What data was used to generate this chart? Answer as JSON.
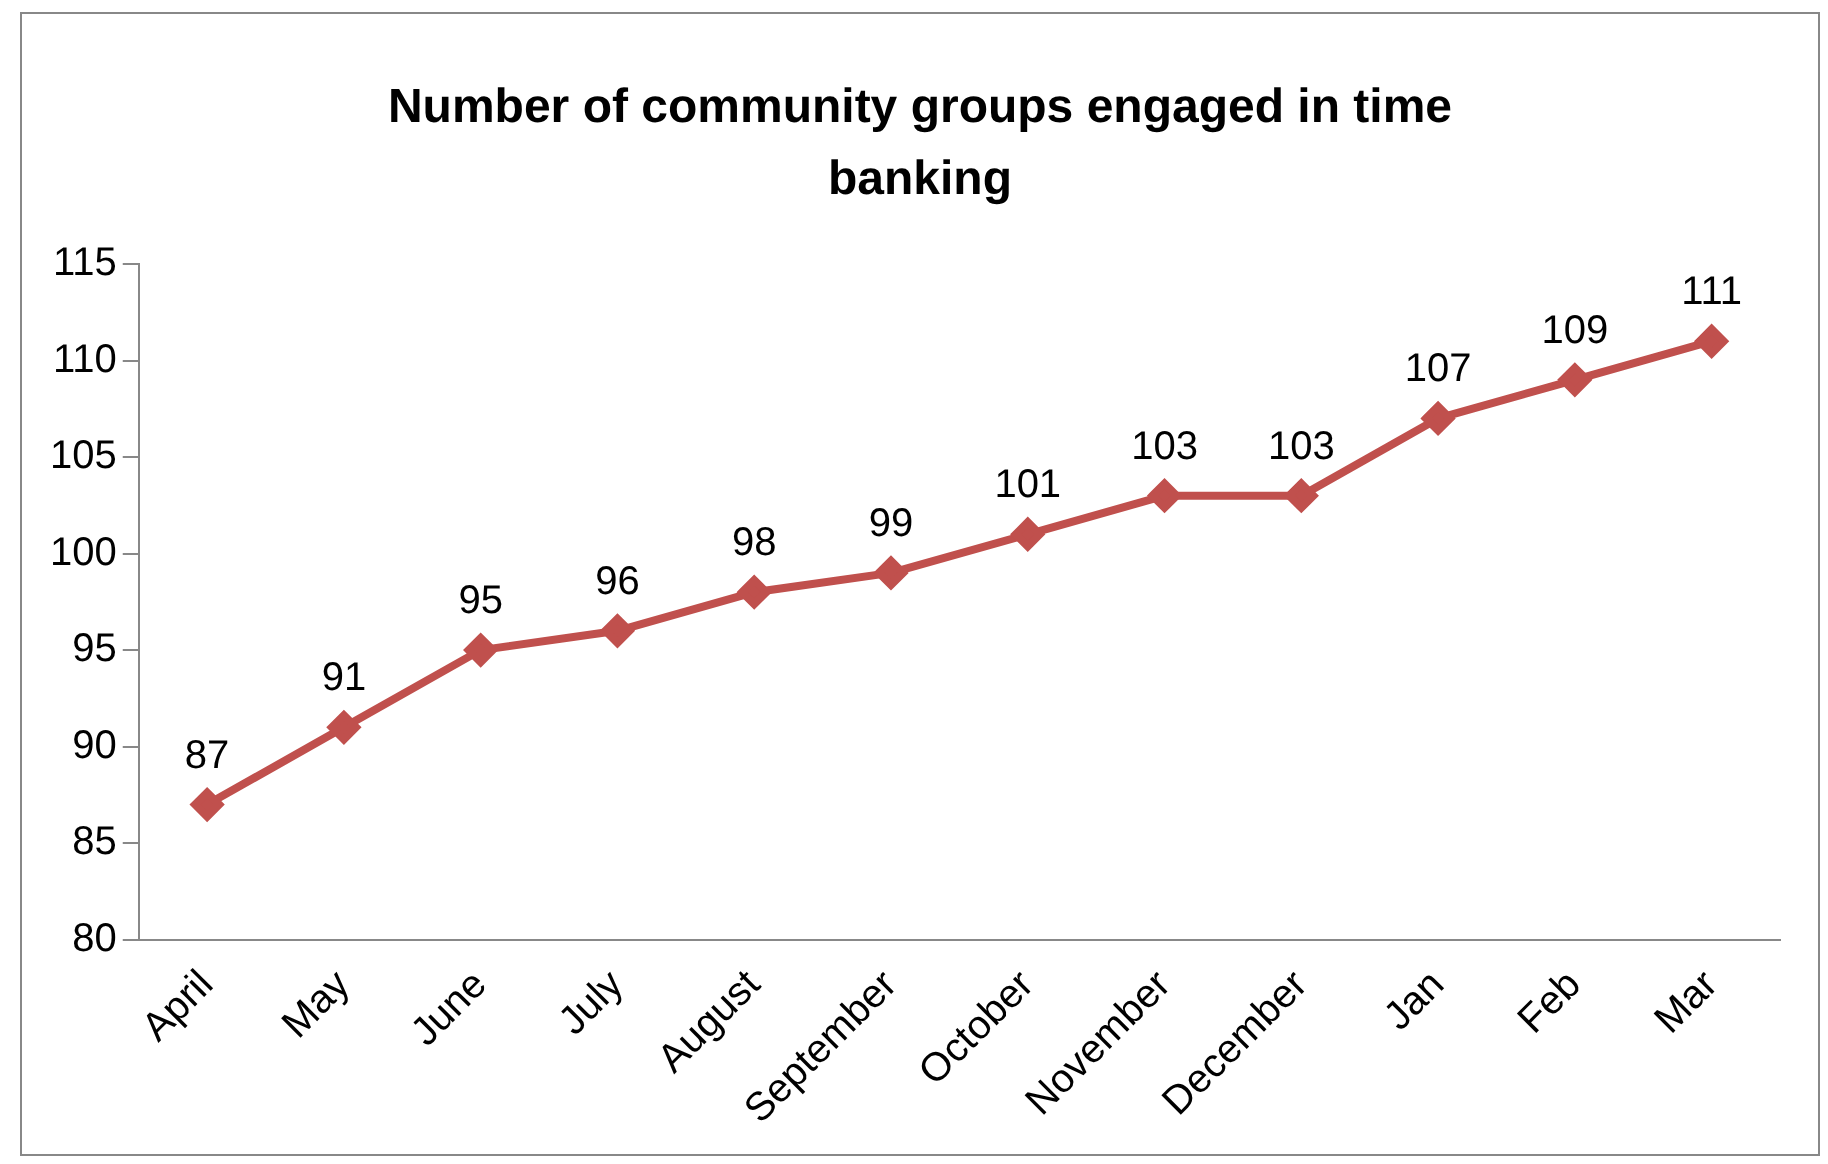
{
  "chart_data": {
    "type": "line",
    "title": "Number of community groups engaged in time banking",
    "categories": [
      "April",
      "May",
      "June",
      "July",
      "August",
      "September",
      "October",
      "November",
      "December",
      "Jan",
      "Feb",
      "Mar"
    ],
    "series": [
      {
        "color": "#c0504d",
        "values": [
          87,
          91,
          95,
          96,
          98,
          99,
          101,
          103,
          103,
          107,
          109,
          111
        ]
      }
    ],
    "ylim": [
      80,
      115
    ],
    "yticks": [
      80,
      85,
      90,
      95,
      100,
      105,
      110,
      115
    ],
    "grid": false,
    "legend": false,
    "marker": "diamond",
    "data_labels": true
  }
}
